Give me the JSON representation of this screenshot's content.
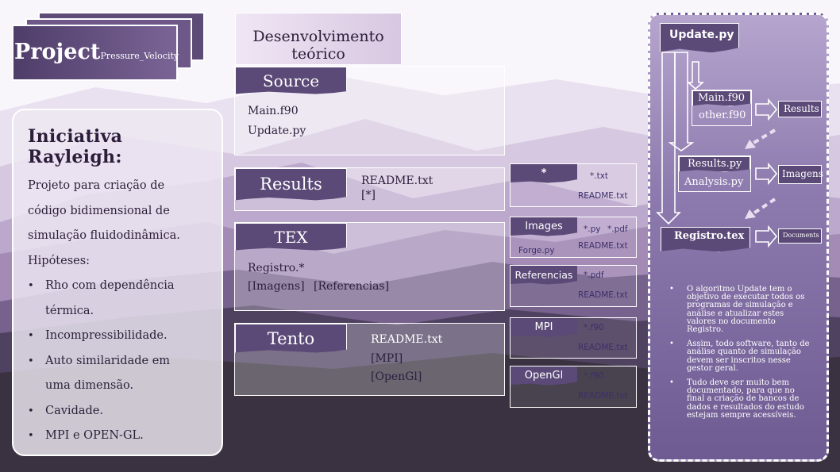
{
  "project": {
    "title": "Project",
    "subtitle": "Pressure_Velocity"
  },
  "info": {
    "title": "Iniciativa Rayleigh:",
    "lines": [
      "Projeto para criação de",
      "código bidimensional de",
      "simulação fluidodinâmica.",
      "Hipóteses:"
    ],
    "bullets": [
      "Rho com dependência",
      "térmica.",
      "Incompressibilidade.",
      "Auto similaridade em",
      "uma dimensão.",
      "Cavidade.",
      "MPI e OPEN-GL."
    ]
  },
  "dev": {
    "title_line1": "Desenvolvimento",
    "title_line2": "teórico"
  },
  "source": {
    "tag": "Source",
    "files": [
      "Main.f90",
      "Update.py"
    ]
  },
  "results": {
    "tag": "Results",
    "files": [
      "README.txt",
      "[*]"
    ]
  },
  "tex": {
    "tag": "TEX",
    "line1": "Registro.*",
    "line2a": "[Imagens]",
    "line2b": "[Referencias]"
  },
  "tento": {
    "tag": "Tento",
    "files": [
      "README.txt",
      "[MPI]",
      "[OpenGl]"
    ]
  },
  "small_boxes": {
    "star": {
      "tag": "*",
      "a": "*.txt",
      "b": "README.txt"
    },
    "images": {
      "tag": "Images",
      "a": "*.py",
      "b": "*.pdf",
      "c": "Forge.py",
      "d": "README.txt"
    },
    "refs": {
      "tag": "Referencias",
      "a": "*.pdf",
      "b": "README.txt"
    },
    "mpi": {
      "tag": "MPI",
      "a": "*.f90",
      "b": "README.txt"
    },
    "opengl": {
      "tag": "OpenGl",
      "a": "*.f90",
      "b": "README.txt"
    }
  },
  "flow": {
    "update": "Update.py",
    "main": "Main.f90",
    "other": "other.f90",
    "results_py": "Results.py",
    "analysis_py": "Analysis.py",
    "registro": "Registro.tex",
    "out_results": "Results",
    "out_imagens": "Imagens",
    "out_documents": "Documents"
  },
  "notes": [
    "O algoritmo Update tem o objetivo de executar todos os programas de simulação e análise e atualizar estes valores no documento Registro.",
    "Assim, todo software, tanto de análise quanto de simulação devem ser inscritos nesse gestor geral.",
    "Tudo deve ser muito bem documentado, para que no final a criação de bancos de dados e resultados do estudo estejam sempre acessíveis."
  ],
  "colors": {
    "accent": "#5b4977",
    "panel": "#eee8f3",
    "dark": "#2c1d3a"
  }
}
